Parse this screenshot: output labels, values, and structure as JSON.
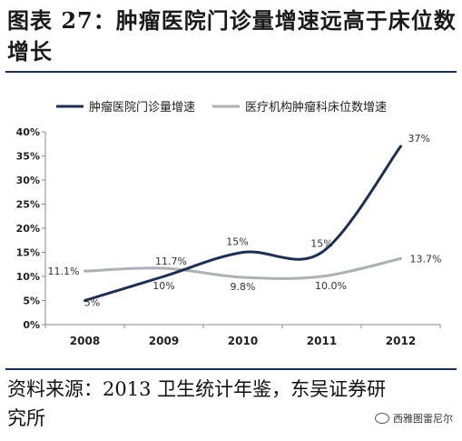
{
  "header": {
    "title": "图表 27：肿瘤医院门诊量增速远高于床位数增长"
  },
  "footer": {
    "source": "资料来源：2013 卫生统计年鉴，东吴证券研究所",
    "watermark": "西雅图雷尼尔"
  },
  "colors": {
    "series1": "#1f2f4f",
    "series2": "#aeb1b4",
    "rule": "#1f2f4f"
  },
  "chart_data": {
    "type": "line",
    "title": "",
    "xlabel": "",
    "ylabel": "",
    "x": [
      "2008",
      "2009",
      "2010",
      "2011",
      "2012"
    ],
    "ylim": [
      0,
      40
    ],
    "yticks": [
      "0%",
      "5%",
      "10%",
      "15%",
      "20%",
      "25%",
      "30%",
      "35%",
      "40%"
    ],
    "legend_position": "top",
    "grid": false,
    "series": [
      {
        "name": "肿瘤医院门诊量增速",
        "values": [
          5,
          10,
          15,
          15,
          37
        ],
        "labels": [
          "5%",
          "10%",
          "15%",
          "15%",
          "37%"
        ]
      },
      {
        "name": "医疗机构肿瘤科床位数增速",
        "values": [
          11.1,
          11.7,
          9.8,
          10.0,
          13.7
        ],
        "labels": [
          "11.1%",
          "11.7%",
          "9.8%",
          "10.0%",
          "13.7%"
        ]
      }
    ]
  }
}
